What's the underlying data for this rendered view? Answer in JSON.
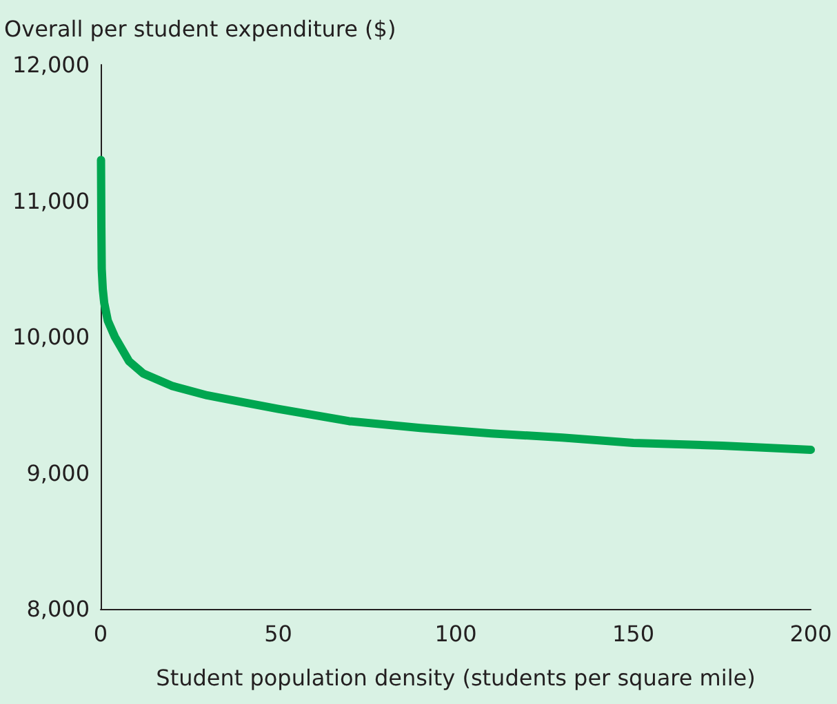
{
  "chart_data": {
    "type": "line",
    "xlabel": "Student population density (students per square mile)",
    "ylabel": "Overall per student expenditure ($)",
    "x": [
      0.1,
      0.2,
      0.3,
      0.6,
      1,
      2,
      4,
      8,
      12,
      20,
      30,
      40,
      50,
      70,
      90,
      110,
      130,
      150,
      175,
      200
    ],
    "series": [
      {
        "color": "#00a650",
        "values": [
          11300,
          10800,
          10500,
          10350,
          10250,
          10120,
          10000,
          9820,
          9730,
          9640,
          9570,
          9520,
          9470,
          9380,
          9330,
          9290,
          9260,
          9220,
          9200,
          9170
        ]
      }
    ],
    "xlim": [
      0,
      200
    ],
    "xticks": [
      0,
      50,
      100,
      150,
      200
    ],
    "ylim": [
      8000,
      12000
    ],
    "yticks": [
      {
        "value": 8000,
        "label": "8,000"
      },
      {
        "value": 9000,
        "label": "9,000"
      },
      {
        "value": 10000,
        "label": "10,000"
      },
      {
        "value": 11000,
        "label": "11,000"
      },
      {
        "value": 12000,
        "label": "12,000"
      }
    ],
    "marker": "none",
    "line_style": "solid"
  }
}
